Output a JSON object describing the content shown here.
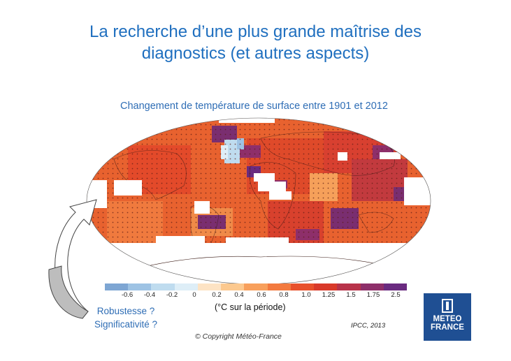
{
  "slide": {
    "title_line1": "La recherche d’une plus grande maîtrise des",
    "title_line2": "diagnostics (et autres aspects)",
    "subtitle": "Changement de température de surface entre 1901 et 2012",
    "unit_label": "(°C sur la période)",
    "robustness_line1": "Robustesse ?",
    "robustness_line2": "Significativité ?",
    "source": "IPCC, 2013",
    "copyright": "© Copyright Météo-France",
    "logo_line1": "METEO",
    "logo_line2": "FRANCE"
  },
  "colorbar": {
    "ticks": [
      "-0.6",
      "-0.4",
      "-0.2",
      "0",
      "0.2",
      "0.4",
      "0.6",
      "0.8",
      "1.0",
      "1.25",
      "1.5",
      "1.75",
      "2.5"
    ],
    "colors": [
      "#7ea6d3",
      "#9ec3e4",
      "#bfdcef",
      "#deeef7",
      "#fde3c4",
      "#fcc98f",
      "#f8a05c",
      "#f37a3f",
      "#e8512b",
      "#d93a2a",
      "#b8334a",
      "#8e2f6a",
      "#6a2b80"
    ]
  },
  "map": {
    "ocean_color": "#e96a34",
    "land_color": "#e34a2a",
    "nodata_color": "#ffffff"
  }
}
